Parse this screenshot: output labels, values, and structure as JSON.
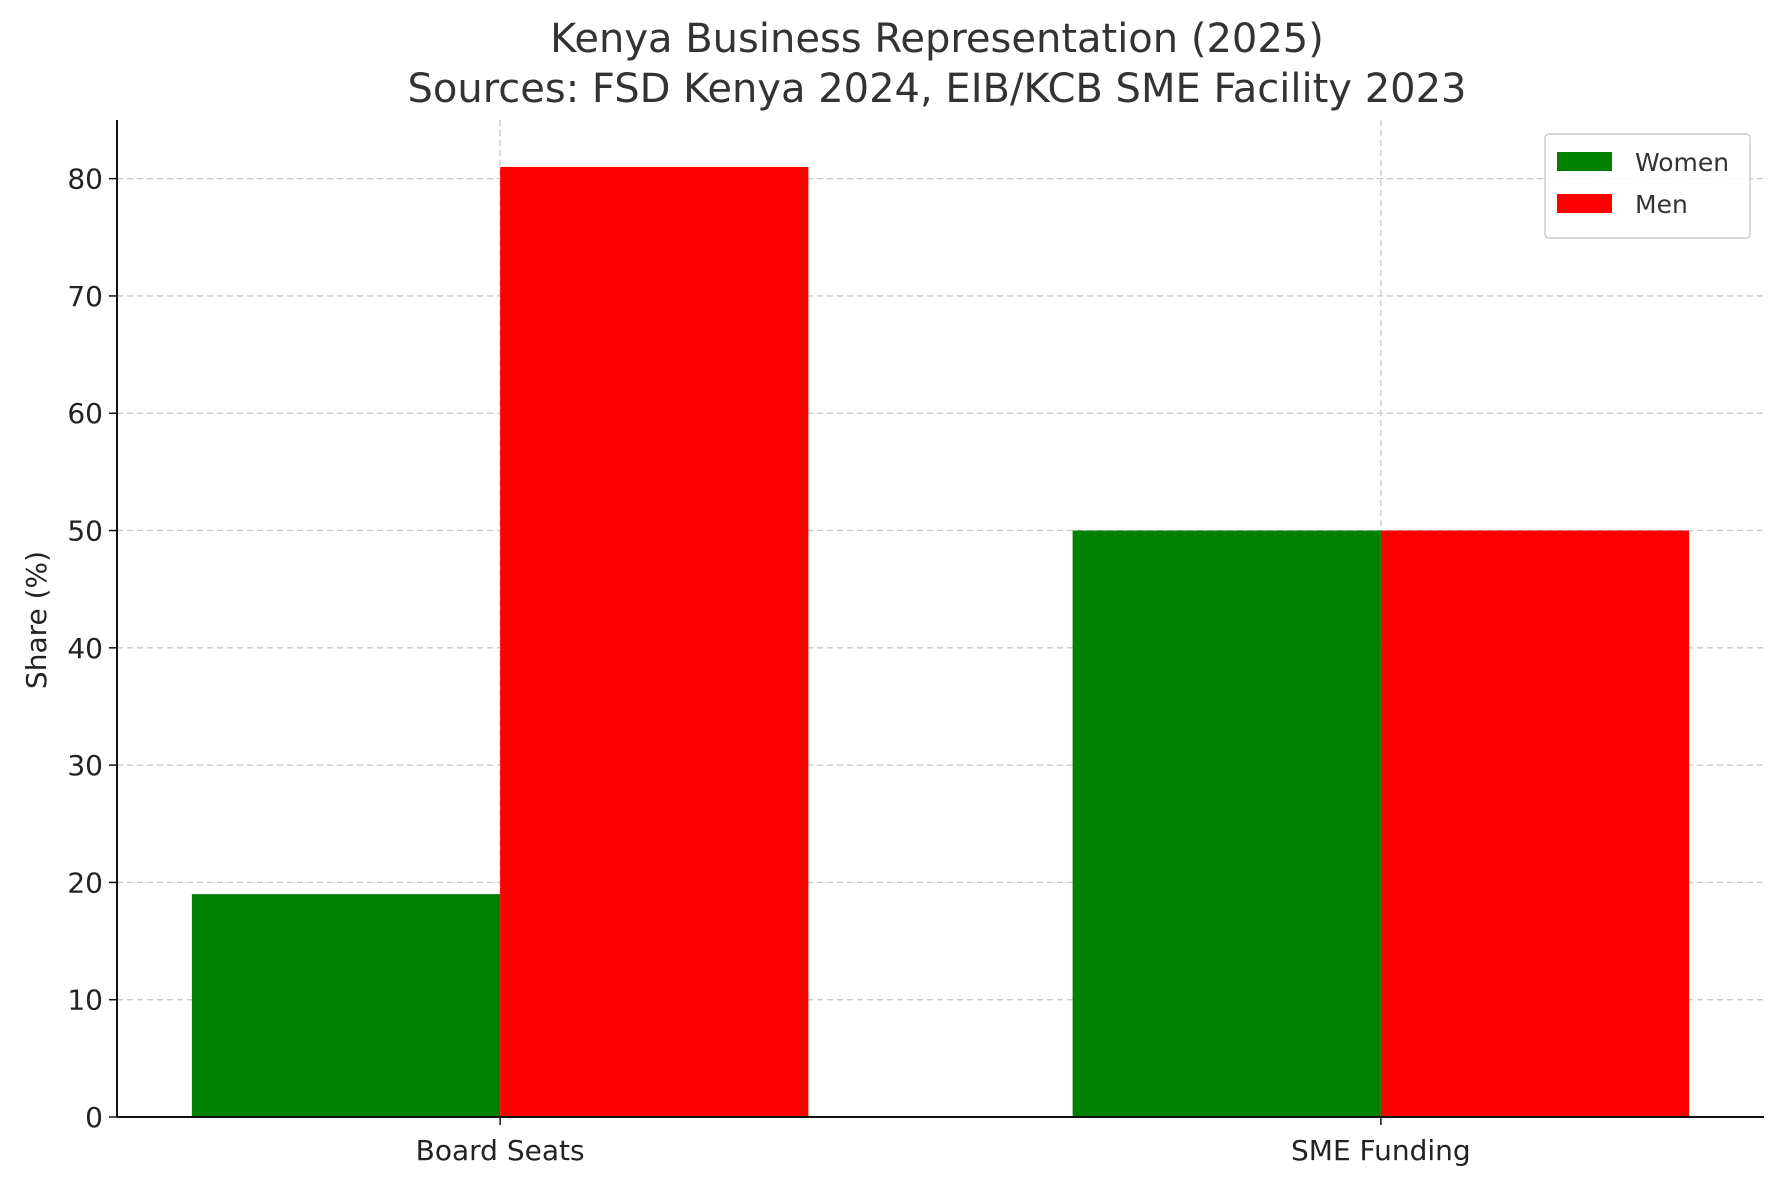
{
  "chart_data": {
    "type": "bar",
    "title": "Kenya Business Representation (2025)",
    "subtitle": "Sources: FSD Kenya 2024, EIB/KCB SME Facility 2023",
    "xlabel": "",
    "ylabel": "Share (%)",
    "categories": [
      "Board Seats",
      "SME Funding"
    ],
    "series": [
      {
        "name": "Women",
        "values": [
          19,
          50
        ],
        "color": "#008000"
      },
      {
        "name": "Men",
        "values": [
          81,
          50
        ],
        "color": "#ff0000"
      }
    ],
    "ylim": [
      0,
      85
    ],
    "yticks": [
      0,
      10,
      20,
      30,
      40,
      50,
      60,
      70,
      80
    ],
    "grid": true,
    "legend_position": "top-right"
  }
}
